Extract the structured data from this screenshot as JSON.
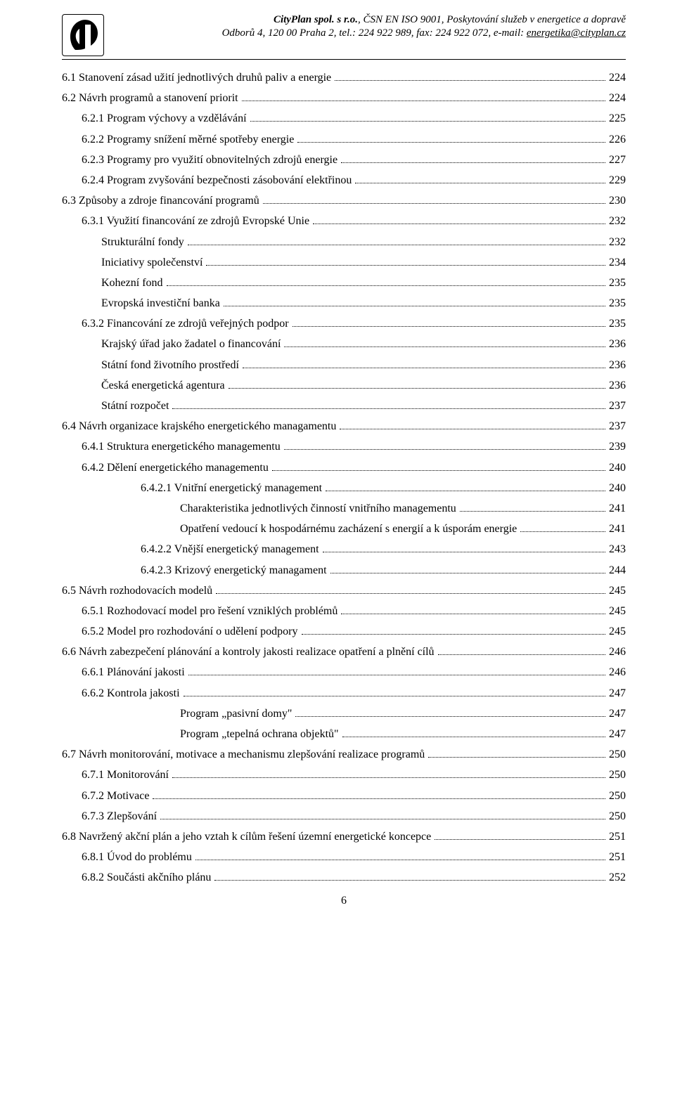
{
  "header": {
    "company_bold": "CityPlan spol. s r.o.",
    "line1_rest": ", ČSN EN ISO 9001, Poskytování služeb v energetice a dopravě",
    "line2_prefix": "Odborů 4, 120 00  Praha 2, tel.: 224 922 989, fax: 224 922 072, e-mail: ",
    "line2_link": "energetika@cityplan.cz"
  },
  "toc": [
    {
      "level": 1,
      "label": "6.1 Stanovení zásad užití jednotlivých druhů paliv a energie",
      "page": "224"
    },
    {
      "level": 1,
      "label": "6.2 Návrh programů a stanovení priorit",
      "page": "224"
    },
    {
      "level": 2,
      "label": "6.2.1 Program výchovy a vzdělávání",
      "page": "225"
    },
    {
      "level": 2,
      "label": "6.2.2 Programy snížení měrné spotřeby energie",
      "page": "226"
    },
    {
      "level": 2,
      "label": "6.2.3 Programy pro využití obnovitelných zdrojů energie",
      "page": "227"
    },
    {
      "level": 2,
      "label": "6.2.4 Program zvyšování bezpečnosti zásobování elektřinou",
      "page": "229"
    },
    {
      "level": 1,
      "label": "6.3 Způsoby a zdroje financování programů",
      "page": "230"
    },
    {
      "level": 2,
      "label": "6.3.1 Využití financování ze zdrojů Evropské Unie",
      "page": "232"
    },
    {
      "level": 3,
      "label": "Strukturální fondy",
      "page": "232"
    },
    {
      "level": 3,
      "label": "Iniciativy společenství",
      "page": "234"
    },
    {
      "level": 3,
      "label": "Kohezní fond",
      "page": "235"
    },
    {
      "level": 3,
      "label": "Evropská investiční banka",
      "page": "235"
    },
    {
      "level": 2,
      "label": "6.3.2 Financování ze zdrojů veřejných podpor",
      "page": "235"
    },
    {
      "level": 3,
      "label": "Krajský úřad jako žadatel o financování",
      "page": "236"
    },
    {
      "level": 3,
      "label": "Státní fond životního prostředí",
      "page": "236"
    },
    {
      "level": 3,
      "label": "Česká energetická agentura",
      "page": "236"
    },
    {
      "level": 3,
      "label": "Státní rozpočet",
      "page": "237"
    },
    {
      "level": 1,
      "label": "6.4 Návrh organizace krajského energetického managamentu",
      "page": "237"
    },
    {
      "level": 2,
      "label": "6.4.1 Struktura energetického managementu",
      "page": "239"
    },
    {
      "level": 2,
      "label": "6.4.2 Dělení energetického managementu",
      "page": "240"
    },
    {
      "level": 4,
      "label": "6.4.2.1 Vnitřní energetický management",
      "page": "240"
    },
    {
      "level": 5,
      "label": "Charakteristika jednotlivých činností vnitřního managementu",
      "page": "241"
    },
    {
      "level": 5,
      "label": "Opatření vedoucí k hospodárnému zacházení s energií a k úsporám energie",
      "page": "241"
    },
    {
      "level": 4,
      "label": "6.4.2.2 Vnější energetický management",
      "page": "243"
    },
    {
      "level": 4,
      "label": "6.4.2.3 Krizový energetický managament",
      "page": "244"
    },
    {
      "level": 1,
      "label": "6.5 Návrh rozhodovacích modelů",
      "page": "245"
    },
    {
      "level": 2,
      "label": "6.5.1 Rozhodovací model pro řešení vzniklých problémů",
      "page": "245"
    },
    {
      "level": 2,
      "label": "6.5.2 Model pro rozhodování o udělení podpory ",
      "page": "245"
    },
    {
      "level": 1,
      "label": "6.6 Návrh zabezpečení plánování a kontroly jakosti realizace opatření a plnění cílů",
      "page": "246"
    },
    {
      "level": 2,
      "label": "6.6.1 Plánování jakosti",
      "page": "246"
    },
    {
      "level": 2,
      "label": "6.6.2 Kontrola jakosti",
      "page": "247"
    },
    {
      "level": 5,
      "label": "Program „pasivní domy\" ",
      "page": "247"
    },
    {
      "level": 5,
      "label": "Program „tepelná ochrana objektů\" ",
      "page": "247"
    },
    {
      "level": 1,
      "label": "6.7 Návrh monitorování, motivace a mechanismu zlepšování realizace programů",
      "page": "250"
    },
    {
      "level": 2,
      "label": "6.7.1 Monitorování",
      "page": "250"
    },
    {
      "level": 2,
      "label": "6.7.2 Motivace",
      "page": "250"
    },
    {
      "level": 2,
      "label": "6.7.3 Zlepšování",
      "page": "250"
    },
    {
      "level": 1,
      "label": "6.8 Navržený akční plán a jeho vztah k cílům řešení územní energetické koncepce",
      "page": "251"
    },
    {
      "level": 2,
      "label": "6.8.1 Úvod do problému",
      "page": "251"
    },
    {
      "level": 2,
      "label": "6.8.2 Součásti akčního plánu",
      "page": "252"
    }
  ],
  "page_number": "6"
}
